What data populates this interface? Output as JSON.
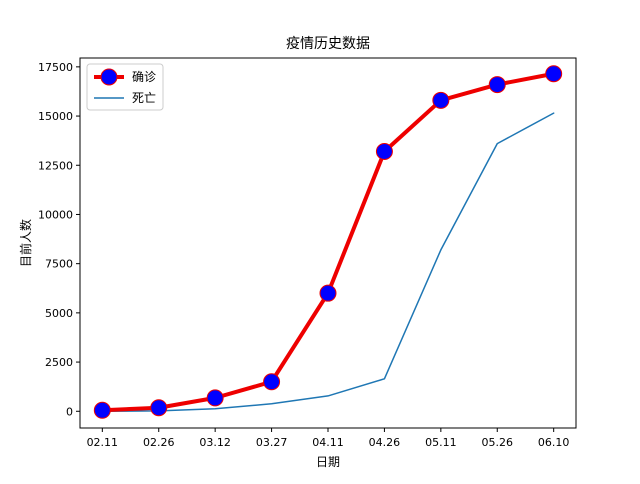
{
  "chart_data": {
    "type": "line",
    "title": "疫情历史数据",
    "xlabel": "日期",
    "ylabel": "目前人数",
    "categories": [
      "02.11",
      "02.26",
      "03.12",
      "03.27",
      "04.11",
      "04.26",
      "05.11",
      "05.26",
      "06.10"
    ],
    "series": [
      {
        "name": "确诊",
        "values": [
          50,
          180,
          680,
          1500,
          6000,
          13200,
          15800,
          16600,
          17150
        ],
        "color": "#ee0000",
        "marker": "circle",
        "marker_face": "#0000ff"
      },
      {
        "name": "死亡",
        "values": [
          0,
          20,
          130,
          380,
          780,
          1650,
          8200,
          13600,
          15150
        ],
        "color": "#1f77b4",
        "marker": "none"
      }
    ],
    "ylim": [
      -850,
      17950
    ],
    "yticks": [
      0,
      2500,
      5000,
      7500,
      10000,
      12500,
      15000,
      17500
    ],
    "grid": false,
    "legend_position": "top-left"
  }
}
